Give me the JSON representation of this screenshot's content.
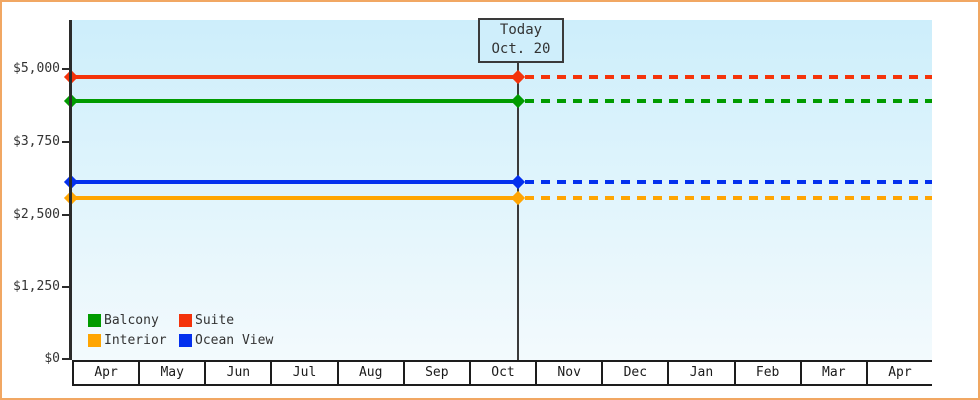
{
  "frame": {
    "border_color": "#f1a763",
    "background": "#ffffff"
  },
  "chart_data": {
    "type": "line",
    "title": "",
    "x_tick_labels": [
      "Apr",
      "May",
      "Jun",
      "Jul",
      "Aug",
      "Sep",
      "Oct",
      "Nov",
      "Dec",
      "Jan",
      "Feb",
      "Mar",
      "Apr"
    ],
    "y_tick_labels": [
      "$5,000",
      "$3,750",
      "$2,500",
      "$1,250",
      "$0"
    ],
    "y_tick_values": [
      5000,
      3750,
      2500,
      1250,
      0
    ],
    "ylim": [
      0,
      5850
    ],
    "grid": false,
    "legend_position": "bottom-left",
    "plot_background_gradient": [
      "#cdeefb",
      "#f3fafd"
    ],
    "today_marker": {
      "line1": "Today",
      "line2": "Oct. 20",
      "x_month": "Oct",
      "x_fraction_of_axis": 0.52
    },
    "series": [
      {
        "name": "Suite",
        "color": "#f4330b",
        "value_approx": 4860,
        "style_before_today": "solid",
        "style_after_today": "dashed",
        "markers": [
          "axis-start",
          "today"
        ]
      },
      {
        "name": "Balcony",
        "color": "#009b00",
        "value_approx": 4450,
        "style_before_today": "solid",
        "style_after_today": "dashed",
        "markers": [
          "axis-start",
          "today"
        ]
      },
      {
        "name": "Ocean View",
        "color": "#0330ee",
        "value_approx": 3050,
        "style_before_today": "solid",
        "style_after_today": "dashed",
        "markers": [
          "axis-start",
          "today"
        ]
      },
      {
        "name": "Interior",
        "color": "#ffa502",
        "value_approx": 2775,
        "style_before_today": "solid",
        "style_after_today": "dashed",
        "markers": [
          "axis-start",
          "today"
        ]
      }
    ]
  },
  "legend": {
    "rows": [
      [
        {
          "label": "Balcony",
          "color": "#009b00"
        },
        {
          "label": "Suite",
          "color": "#f4330b"
        }
      ],
      [
        {
          "label": "Interior",
          "color": "#ffa502"
        },
        {
          "label": "Ocean View",
          "color": "#0330ee"
        }
      ]
    ]
  }
}
